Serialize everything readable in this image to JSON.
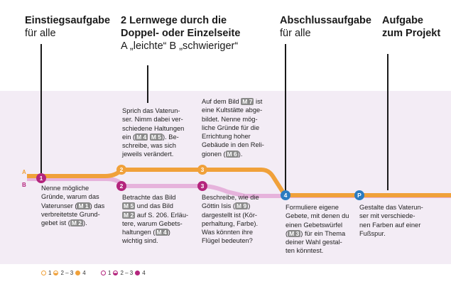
{
  "headers": {
    "h1": {
      "title": "Einstiegsaufgabe",
      "sub": "für alle"
    },
    "h2": {
      "title1": "2 Lernwege durch die",
      "title2": "Doppel- oder Einzelseite",
      "sub": "A „leichte“ B „schwieriger“"
    },
    "h3": {
      "title": "Abschlussaufgabe",
      "sub": "für alle"
    },
    "h4": {
      "title1": "Aufgabe",
      "title2": "zum Projekt"
    }
  },
  "lanes": {
    "a": "A",
    "b": "B"
  },
  "stations": {
    "s1": "1",
    "s2a": "2",
    "s3a": "3",
    "s2b": "2",
    "s3b": "3",
    "s4": "4",
    "sp": "P"
  },
  "tasks": {
    "t1": {
      "l1": "Nenne mögliche",
      "l2": "Gründe, warum das",
      "l3a": "Vaterunser (",
      "tag1": "M 1",
      "l3b": ") das",
      "l4": "verbreitetste Grund-",
      "l5a": "gebet ist (",
      "tag2": "M 2",
      "l5b": ")."
    },
    "t2a": {
      "l1": "Sprich das Vaterun-",
      "l2": "ser. Nimm dabei ver-",
      "l3": "schiedene Haltungen",
      "l4a": "ein (",
      "tag1": "M 4",
      "tag2": "M 5",
      "l4b": "). Be-",
      "l5": "schreibe, was sich",
      "l6": "jeweils verändert."
    },
    "t3a": {
      "l1a": "Auf dem Bild ",
      "tag1": "M 7",
      "l1b": " ist",
      "l2": "eine Kultstätte abge-",
      "l3": "bildet. Nenne mög-",
      "l4": "liche Gründe für die",
      "l5": "Errichtung hoher",
      "l6": "Gebäude in den Reli-",
      "l7a": "gionen (",
      "tag2": "M 6",
      "l7b": ")."
    },
    "t2b": {
      "l1": "Betrachte das Bild",
      "tag1": "M 5",
      "l2b": " und das Bild",
      "tag2": "M 2",
      "l3b": " auf S. 206. Erläu-",
      "l4": "tere, warum Gebets-",
      "l5a": "haltungen (",
      "tag3": "M 4",
      "l5b": ")",
      "l6": "wichtig sind."
    },
    "t3b": {
      "l1": "Beschreibe, wie die",
      "l2a": "Göttin Isis (",
      "tag1": "M 9",
      "l2b": ")",
      "l3": "dargestellt ist (Kör-",
      "l4": "perhaltung, Farbe).",
      "l5": "Was könnten ihre",
      "l6": "Flügel bedeuten?"
    },
    "t4": {
      "l1": "Formuliere eigene",
      "l2": "Gebete, mit denen du",
      "l3": "einen Gebetswürfel",
      "l4a": "(",
      "tag1": "M 3",
      "l4b": ") für ein Thema",
      "l5": "deiner Wahl gestal-",
      "l6": "ten könntest."
    },
    "tp": {
      "l1": "Gestalte das Vaterun-",
      "l2": "ser mit verschiede-",
      "l3": "nen Farben auf einer",
      "l4": "Fußspur."
    }
  },
  "legend": {
    "a": {
      "n1": "1",
      "n2": "2 – 3",
      "n3": "4"
    },
    "b": {
      "n1": "1",
      "n2": "2 – 3",
      "n3": "4"
    }
  },
  "colors": {
    "orange": "#f0a13a",
    "pink": "#e6b3dc",
    "magenta": "#b4257d",
    "blue": "#2b7cc0",
    "band": "#f3ecf5"
  }
}
